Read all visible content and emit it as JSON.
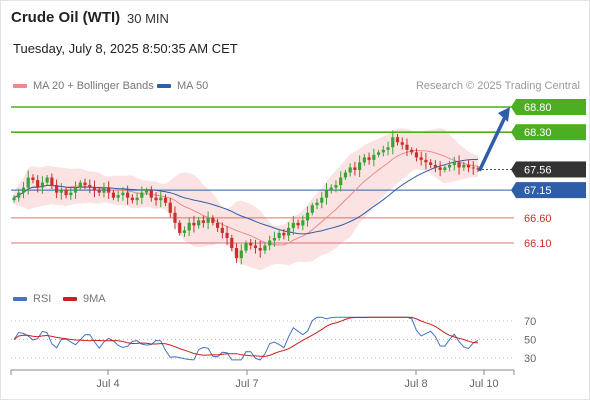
{
  "header": {
    "title": "Crude Oil (WTI)",
    "interval": "30 MIN",
    "timestamp": "Tuesday, July 8, 2025 8:50:35 AM CET"
  },
  "legend": {
    "ma_bollinger": "MA 20 + Bollinger Bands",
    "ma50": "MA 50",
    "rsi": "RSI",
    "rsi_ma": "9MA"
  },
  "credit": "Research © 2025 Trading Central",
  "colors": {
    "green": "#4caf22",
    "blue": "#2e5ea8",
    "red": "#e07070",
    "dark": "#333333",
    "ma20": "#f08a8a",
    "band": "#fcdede",
    "candle_up": "#3aa335",
    "candle_down": "#c9302c",
    "rsi": "#4472c4",
    "rsi_ma": "#cc1f1f"
  },
  "chart_data": {
    "type": "candlestick",
    "price_levels": [
      {
        "label": "68.80",
        "value": 68.8,
        "style": "green-box"
      },
      {
        "label": "68.30",
        "value": 68.3,
        "style": "green-box"
      },
      {
        "label": "67.56",
        "value": 67.56,
        "style": "dark-box"
      },
      {
        "label": "67.15",
        "value": 67.15,
        "style": "blue-box"
      },
      {
        "label": "66.60",
        "value": 66.6,
        "style": "red-text"
      },
      {
        "label": "66.10",
        "value": 66.1,
        "style": "red-text"
      }
    ],
    "x_ticks": [
      "Jul 4",
      "Jul 7",
      "Jul 8",
      "Jul 10"
    ],
    "rsi_ticks": [
      "70",
      "50",
      "30"
    ],
    "close": [
      67.0,
      67.1,
      67.2,
      67.4,
      67.35,
      67.2,
      67.3,
      67.4,
      67.25,
      67.1,
      67.15,
      67.05,
      67.1,
      67.2,
      67.3,
      67.25,
      67.2,
      67.15,
      67.1,
      67.2,
      67.1,
      67.0,
      67.05,
      67.1,
      67.0,
      66.95,
      67.0,
      67.1,
      67.15,
      67.0,
      66.95,
      67.0,
      66.9,
      66.7,
      66.5,
      66.3,
      66.35,
      66.5,
      66.45,
      66.55,
      66.5,
      66.6,
      66.5,
      66.4,
      66.3,
      66.2,
      66.0,
      65.8,
      65.95,
      66.1,
      66.05,
      66.0,
      65.95,
      66.05,
      66.15,
      66.2,
      66.3,
      66.25,
      66.4,
      66.5,
      66.45,
      66.55,
      66.7,
      66.85,
      66.9,
      67.0,
      67.15,
      67.2,
      67.25,
      67.4,
      67.5,
      67.6,
      67.55,
      67.7,
      67.8,
      67.75,
      67.85,
      67.9,
      67.95,
      68.0,
      68.2,
      68.1,
      68.05,
      67.95,
      67.9,
      67.8,
      67.75,
      67.7,
      67.65,
      67.6,
      67.55,
      67.6,
      67.65,
      67.7,
      67.6,
      67.65,
      67.6,
      67.58,
      67.56
    ],
    "arrow_target": 68.8
  }
}
